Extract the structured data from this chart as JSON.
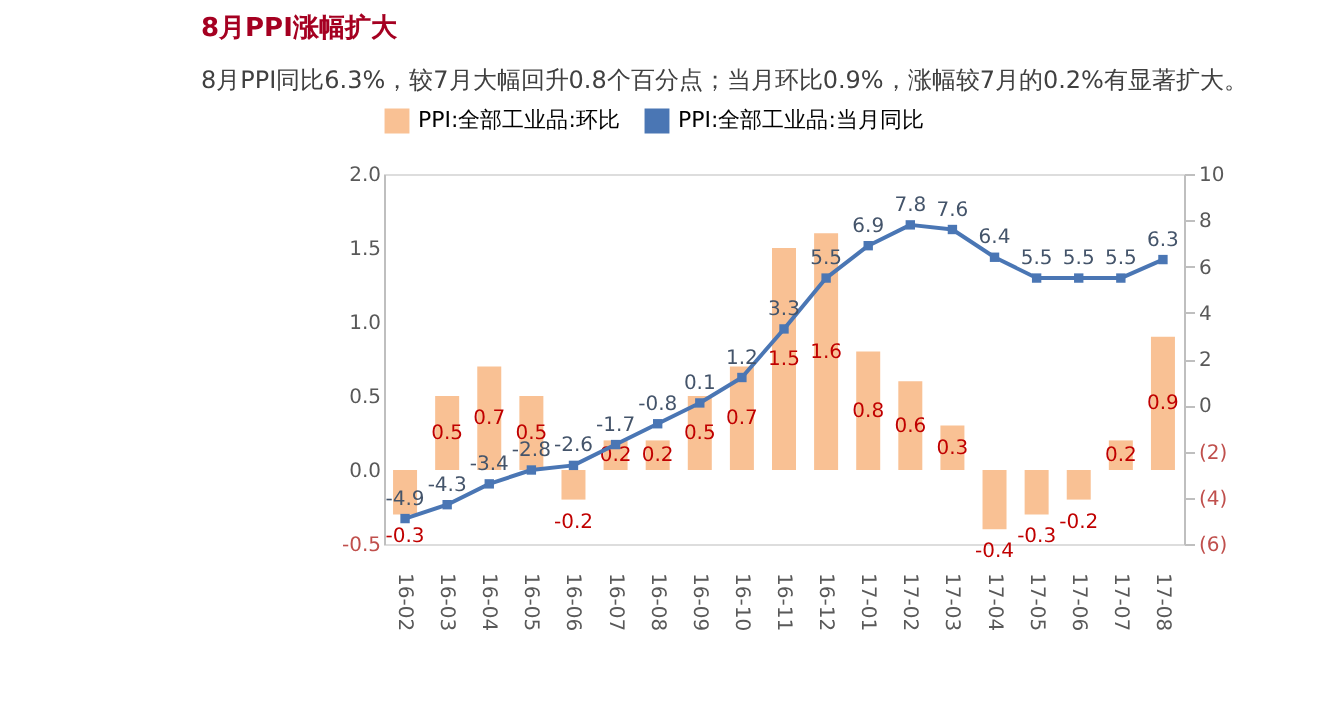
{
  "chart_data": {
    "type": "bar",
    "title": "8月PPI涨幅扩大",
    "subtitle": "8月PPI同比6.3%，较7月大幅回升0.8个百分点；当月环比0.9%，涨幅较7月的0.2%有显著扩大。",
    "categories": [
      "16-02",
      "16-03",
      "16-04",
      "16-05",
      "16-06",
      "16-07",
      "16-08",
      "16-09",
      "16-10",
      "16-11",
      "16-12",
      "17-01",
      "17-02",
      "17-03",
      "17-04",
      "17-05",
      "17-06",
      "17-07",
      "17-08"
    ],
    "series": [
      {
        "name": "PPI:全部工业品:环比",
        "color": "#f9c194",
        "values": [
          -0.3,
          0.5,
          0.7,
          0.5,
          -0.2,
          0.2,
          0.2,
          0.5,
          0.7,
          1.5,
          1.6,
          0.8,
          0.6,
          0.3,
          -0.4,
          -0.3,
          -0.2,
          0.2,
          0.9
        ]
      },
      {
        "name": "PPI:全部工业品:当月同比",
        "type": "line",
        "axis": "y2",
        "marker": "square",
        "color": "#4a76b4",
        "values": [
          -4.9,
          -4.3,
          -3.4,
          -2.8,
          -2.6,
          -1.7,
          -0.8,
          0.1,
          1.2,
          3.3,
          5.5,
          6.9,
          7.8,
          7.6,
          6.4,
          5.5,
          5.5,
          5.5,
          6.3
        ]
      }
    ],
    "ylim": [
      -0.5,
      2.0
    ],
    "yticks": [
      -0.5,
      {
        "value": 0,
        "label": "0.0"
      },
      0.5,
      {
        "value": 1,
        "label": "1.0"
      },
      1.5,
      {
        "value": 2,
        "label": "2.0"
      }
    ],
    "y2lim": [
      -6,
      10
    ],
    "y2ticks": [
      {
        "value": -6,
        "label": "(6)"
      },
      {
        "value": -4,
        "label": "(4)"
      },
      {
        "value": -2,
        "label": "(2)"
      },
      0,
      2,
      4,
      6,
      8,
      10
    ],
    "data_labels": true,
    "legend": "top",
    "grid": false
  }
}
